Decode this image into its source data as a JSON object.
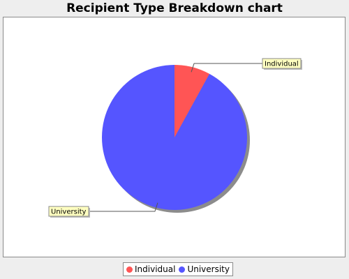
{
  "chart_data": {
    "type": "pie",
    "title": "Recipient Type Breakdown chart",
    "categories": [
      "Individual",
      "University"
    ],
    "values": [
      8,
      92
    ],
    "colors": [
      "#ff5555",
      "#5555ff"
    ],
    "legend_position": "bottom",
    "shadow": true
  },
  "legend": {
    "items": [
      {
        "label": "Individual",
        "color": "#ff5555"
      },
      {
        "label": "University",
        "color": "#5555ff"
      }
    ]
  }
}
